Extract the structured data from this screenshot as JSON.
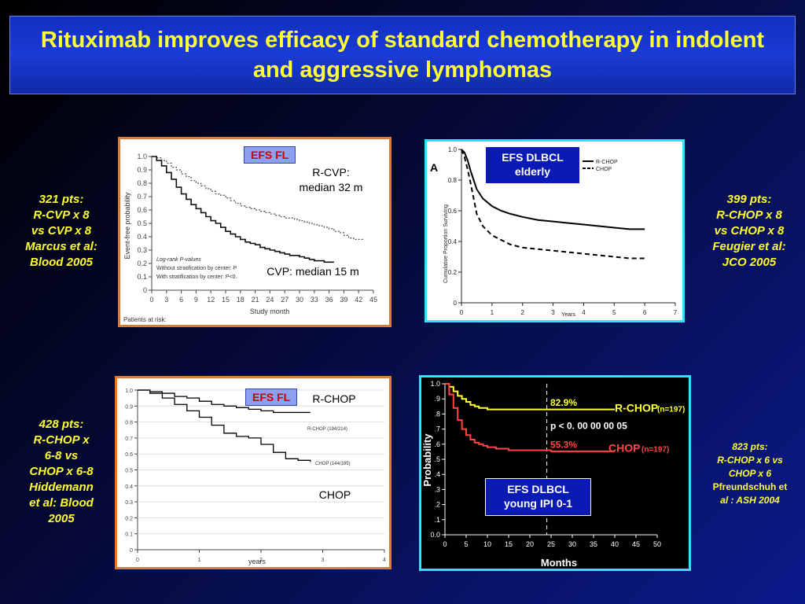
{
  "title": "Rituximab improves efficacy of standard chemotherapy in indolent and aggressive lymphomas",
  "colors": {
    "title_text": "#ffff33",
    "side_text": "#ffff33",
    "panel1_border": "#e07a30",
    "panel2_border": "#33e0ff",
    "accent_red": "#cc0000"
  },
  "side_notes": {
    "left_top": [
      "321 pts:",
      "R-CVP x 8",
      "vs CVP x 8",
      "Marcus et al:",
      "Blood 2005"
    ],
    "right_top": [
      "399 pts:",
      "R-CHOP x 8",
      "vs CHOP x 8",
      "Feugier et al:",
      "JCO 2005"
    ],
    "left_bottom": [
      "428 pts:",
      "R-CHOP x",
      "6-8 vs",
      "CHOP x 6-8",
      "Hiddemann",
      "et al: Blood",
      "2005"
    ],
    "right_bottom": [
      "823 pts:",
      "R-CHOP x 6 vs",
      "CHOP x 6",
      "Pfreundschuh et",
      "al : ASH 2004"
    ]
  },
  "chart_data": [
    {
      "type": "line",
      "label_box": "EFS FL",
      "ylabel": "Event-free probability",
      "xlabel": "Study month",
      "x_ticks": [
        "0",
        "3",
        "6",
        "9",
        "12",
        "15",
        "18",
        "21",
        "24",
        "27",
        "30",
        "33",
        "36",
        "39",
        "42",
        "45"
      ],
      "y_ticks": [
        "0",
        "0.1",
        "0.2",
        "0.3",
        "0.4",
        "0.5",
        "0.6",
        "0.7",
        "0.8",
        "0.9",
        "1.0"
      ],
      "xlim": [
        0,
        45
      ],
      "ylim": [
        0,
        1.0
      ],
      "annotations": {
        "rcvp_line1": "R-CVP:",
        "rcvp_line2": "median 32 m",
        "cvp": "CVP: median 15 m",
        "logrank1": "Log-rank P-values",
        "logrank2": "Without stratification by center: P",
        "logrank3": "With stratification by center: P<0.",
        "at_risk": "Patients at risk:"
      },
      "series": [
        {
          "x": [
            0,
            1,
            2,
            3,
            4,
            5,
            6,
            7,
            8,
            9,
            10,
            11,
            12,
            13,
            14,
            15,
            16,
            17,
            18,
            19,
            20,
            21,
            22,
            23,
            24,
            25,
            26,
            27,
            28,
            29,
            30,
            31,
            32,
            33,
            34,
            35,
            36,
            37,
            38,
            39,
            40,
            41,
            42,
            43
          ],
          "values": [
            1.0,
            0.99,
            0.97,
            0.95,
            0.92,
            0.9,
            0.87,
            0.85,
            0.82,
            0.8,
            0.78,
            0.76,
            0.74,
            0.72,
            0.71,
            0.69,
            0.67,
            0.65,
            0.63,
            0.62,
            0.61,
            0.6,
            0.59,
            0.58,
            0.57,
            0.56,
            0.55,
            0.54,
            0.54,
            0.53,
            0.52,
            0.51,
            0.5,
            0.49,
            0.48,
            0.47,
            0.46,
            0.44,
            0.43,
            0.41,
            0.39,
            0.38,
            0.38,
            0.38
          ],
          "style": "dotted"
        },
        {
          "x": [
            0,
            1,
            2,
            3,
            4,
            5,
            6,
            7,
            8,
            9,
            10,
            11,
            12,
            13,
            14,
            15,
            16,
            17,
            18,
            19,
            20,
            21,
            22,
            23,
            24,
            25,
            26,
            27,
            28,
            29,
            30,
            31,
            32,
            33,
            34,
            35,
            36,
            37
          ],
          "values": [
            1.0,
            0.97,
            0.93,
            0.88,
            0.83,
            0.77,
            0.72,
            0.68,
            0.64,
            0.61,
            0.58,
            0.55,
            0.52,
            0.5,
            0.47,
            0.44,
            0.42,
            0.4,
            0.38,
            0.36,
            0.35,
            0.34,
            0.32,
            0.31,
            0.3,
            0.29,
            0.28,
            0.27,
            0.26,
            0.26,
            0.25,
            0.24,
            0.23,
            0.22,
            0.22,
            0.21,
            0.21,
            0.21
          ],
          "style": "solid"
        }
      ]
    },
    {
      "type": "line",
      "panel_letter": "A",
      "label_box_line1": "EFS DLBCL",
      "label_box_line2": "elderly",
      "ylabel": "Cumulative Proportion Surviving",
      "xlabel": "Years",
      "x_ticks": [
        "0",
        "1",
        "2",
        "3",
        "4",
        "5",
        "6",
        "7"
      ],
      "y_ticks": [
        "0",
        "0.2",
        "0.4",
        "0.6",
        "0.8",
        "1.0"
      ],
      "xlim": [
        0,
        7
      ],
      "ylim": [
        0,
        1.0
      ],
      "series": [
        {
          "name": "R-CHOP",
          "x": [
            0,
            0.1,
            0.2,
            0.3,
            0.4,
            0.5,
            0.7,
            1.0,
            1.3,
            1.6,
            2.0,
            2.5,
            3.0,
            3.5,
            4.0,
            4.5,
            5.0,
            5.5,
            6.0
          ],
          "values": [
            1.0,
            0.98,
            0.93,
            0.86,
            0.8,
            0.74,
            0.68,
            0.63,
            0.6,
            0.58,
            0.56,
            0.54,
            0.53,
            0.52,
            0.51,
            0.5,
            0.49,
            0.48,
            0.48
          ],
          "style": "solid"
        },
        {
          "name": "CHOP",
          "x": [
            0,
            0.1,
            0.2,
            0.3,
            0.4,
            0.5,
            0.7,
            1.0,
            1.3,
            1.6,
            2.0,
            2.5,
            3.0,
            3.5,
            4.0,
            4.5,
            5.0,
            5.5,
            6.0
          ],
          "values": [
            1.0,
            0.95,
            0.87,
            0.78,
            0.68,
            0.58,
            0.5,
            0.44,
            0.41,
            0.38,
            0.36,
            0.35,
            0.34,
            0.33,
            0.32,
            0.31,
            0.3,
            0.29,
            0.29
          ],
          "style": "dashed"
        }
      ]
    },
    {
      "type": "line",
      "label_box": "EFS FL",
      "xlabel": "years",
      "x_ticks": [
        "0",
        "1",
        "2",
        "3",
        "4"
      ],
      "y_ticks": [
        "0",
        "0.1",
        "0.2",
        "0.3",
        "0.4",
        "0.5",
        "0.6",
        "0.7",
        "0.8",
        "0.9",
        "1.0"
      ],
      "xlim": [
        0,
        4
      ],
      "ylim": [
        0,
        1.0
      ],
      "annotations": {
        "rchop": "R-CHOP",
        "chop": "CHOP",
        "rchop_small": "R-CHOP (194/214)",
        "chop_small": "CHOP (144/185)"
      },
      "series": [
        {
          "name": "R-CHOP (194/214)",
          "x": [
            0,
            0.2,
            0.4,
            0.6,
            0.8,
            1.0,
            1.2,
            1.4,
            1.6,
            1.8,
            2.0,
            2.2,
            2.4,
            2.6,
            2.8
          ],
          "values": [
            1.0,
            0.99,
            0.98,
            0.96,
            0.95,
            0.93,
            0.91,
            0.9,
            0.89,
            0.88,
            0.87,
            0.86,
            0.86,
            0.86,
            0.86
          ]
        },
        {
          "name": "CHOP (144/185)",
          "x": [
            0,
            0.2,
            0.4,
            0.6,
            0.8,
            1.0,
            1.2,
            1.4,
            1.6,
            1.8,
            2.0,
            2.2,
            2.4,
            2.6,
            2.8
          ],
          "values": [
            1.0,
            0.98,
            0.95,
            0.91,
            0.87,
            0.83,
            0.78,
            0.73,
            0.71,
            0.7,
            0.66,
            0.61,
            0.57,
            0.56,
            0.55
          ]
        }
      ]
    },
    {
      "type": "line",
      "label_box_line1": "EFS DLBCL",
      "label_box_line2": "young IPI 0-1",
      "ylabel": "Probability",
      "xlabel": "Months",
      "x_ticks": [
        "0",
        "5",
        "10",
        "15",
        "20",
        "25",
        "30",
        "35",
        "40",
        "45",
        "50"
      ],
      "y_ticks": [
        "0.0",
        ".1",
        ".2",
        ".3",
        ".4",
        ".5",
        ".6",
        ".7",
        ".8",
        ".9",
        "1.0"
      ],
      "xlim": [
        0,
        50
      ],
      "ylim": [
        0,
        1.0
      ],
      "pvalue": "p < 0. 00 00 00 05",
      "marker_x": 24,
      "series": [
        {
          "name": "R-CHOP",
          "n_label": "(n=197)",
          "end_label": "82.9%",
          "color": "#ffff33",
          "x": [
            0,
            1,
            2,
            3,
            4,
            5,
            6,
            7,
            8,
            9,
            10,
            12,
            15,
            20,
            25,
            30,
            35,
            40
          ],
          "values": [
            1.0,
            0.98,
            0.95,
            0.92,
            0.9,
            0.88,
            0.86,
            0.85,
            0.84,
            0.84,
            0.83,
            0.83,
            0.83,
            0.83,
            0.83,
            0.83,
            0.83,
            0.83
          ]
        },
        {
          "name": "CHOP",
          "n_label": "(n=197)",
          "end_label": "55.3%",
          "color": "#ff4444",
          "x": [
            0,
            1,
            2,
            3,
            4,
            5,
            6,
            7,
            8,
            9,
            10,
            12,
            15,
            20,
            25,
            30,
            35,
            40
          ],
          "values": [
            1.0,
            0.93,
            0.84,
            0.76,
            0.7,
            0.66,
            0.63,
            0.61,
            0.6,
            0.59,
            0.58,
            0.57,
            0.56,
            0.56,
            0.553,
            0.553,
            0.553,
            0.553
          ]
        }
      ]
    }
  ]
}
